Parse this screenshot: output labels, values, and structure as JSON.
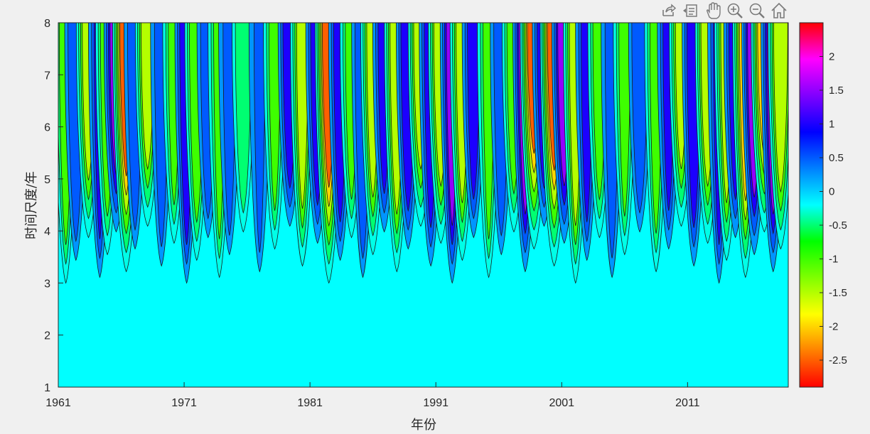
{
  "toolbar": {
    "icons": [
      "export-icon",
      "data-cursor-icon",
      "pan-icon",
      "zoom-in-icon",
      "zoom-out-icon",
      "home-icon"
    ]
  },
  "chart_data": {
    "type": "heatmap",
    "title": "",
    "xlabel": "年份",
    "ylabel": "时间尺度/年",
    "xlim": [
      1961,
      2019
    ],
    "ylim": [
      1,
      8
    ],
    "x_ticks": [
      "1961",
      "1971",
      "1981",
      "1991",
      "2001",
      "2011"
    ],
    "y_ticks": [
      "1",
      "2",
      "3",
      "4",
      "5",
      "6",
      "7",
      "8"
    ],
    "colorbar": {
      "range": [
        -2.9,
        2.5
      ],
      "ticks": [
        "2",
        "1.5",
        "1",
        "0.5",
        "0",
        "-0.5",
        "-1",
        "-1.5",
        "-2",
        "-2.5"
      ],
      "colormap": [
        "#ff0000",
        "#ff00ff",
        "#8000ff",
        "#0000ff",
        "#0080ff",
        "#00ffff",
        "#00ff00",
        "#80ff00",
        "#ffff00",
        "#ff8000",
        "#ff0000"
      ]
    },
    "background_value": 0,
    "grid": false,
    "features": [
      {
        "x": 1961.6,
        "value": -1.2
      },
      {
        "x": 1962.4,
        "value": 0.9
      },
      {
        "x": 1963.4,
        "value": -1.6
      },
      {
        "x": 1964.3,
        "value": 1.0
      },
      {
        "x": 1964.9,
        "value": -1.3
      },
      {
        "x": 1965.6,
        "value": 1.6
      },
      {
        "x": 1966.4,
        "value": -2.6
      },
      {
        "x": 1967.1,
        "value": 0.8
      },
      {
        "x": 1968.1,
        "value": -1.7
      },
      {
        "x": 1969.2,
        "value": 0.7
      },
      {
        "x": 1970.2,
        "value": -1.0
      },
      {
        "x": 1971.2,
        "value": 1.3
      },
      {
        "x": 1972.0,
        "value": -1.4
      },
      {
        "x": 1972.9,
        "value": 0.8
      },
      {
        "x": 1973.8,
        "value": -1.0
      },
      {
        "x": 1974.6,
        "value": 0.6
      },
      {
        "x": 1975.7,
        "value": -0.9
      },
      {
        "x": 1977.0,
        "value": 0.5
      },
      {
        "x": 1978.2,
        "value": -1.0
      },
      {
        "x": 1979.4,
        "value": 1.3
      },
      {
        "x": 1980.4,
        "value": -1.5
      },
      {
        "x": 1981.6,
        "value": 1.3
      },
      {
        "x": 1982.5,
        "value": -2.7
      },
      {
        "x": 1983.4,
        "value": 1.2
      },
      {
        "x": 1984.3,
        "value": -1.1
      },
      {
        "x": 1985.2,
        "value": 0.9
      },
      {
        "x": 1986.0,
        "value": -1.6
      },
      {
        "x": 1986.9,
        "value": 1.1
      },
      {
        "x": 1987.9,
        "value": -1.8
      },
      {
        "x": 1988.8,
        "value": 1.4
      },
      {
        "x": 1989.8,
        "value": -1.9
      },
      {
        "x": 1990.6,
        "value": 1.2
      },
      {
        "x": 1991.4,
        "value": -1.9
      },
      {
        "x": 1992.3,
        "value": 1.5
      },
      {
        "x": 1993.1,
        "value": -1.6
      },
      {
        "x": 1994.0,
        "value": 1.1
      },
      {
        "x": 1995.2,
        "value": -1.0
      },
      {
        "x": 1996.2,
        "value": 0.8
      },
      {
        "x": 1997.2,
        "value": -1.3
      },
      {
        "x": 1998.1,
        "value": 1.7
      },
      {
        "x": 1998.8,
        "value": -2.7
      },
      {
        "x": 1999.6,
        "value": 1.3
      },
      {
        "x": 2000.4,
        "value": -2.8
      },
      {
        "x": 2001.2,
        "value": 1.7
      },
      {
        "x": 2002.1,
        "value": -1.6
      },
      {
        "x": 2003.0,
        "value": 1.0
      },
      {
        "x": 2004.0,
        "value": -1.2
      },
      {
        "x": 2005.0,
        "value": 0.7
      },
      {
        "x": 2006.0,
        "value": -1.0
      },
      {
        "x": 2007.2,
        "value": 0.9
      },
      {
        "x": 2008.5,
        "value": -1.1
      },
      {
        "x": 2009.5,
        "value": 1.0
      },
      {
        "x": 2010.5,
        "value": -1.5
      },
      {
        "x": 2011.5,
        "value": 1.3
      },
      {
        "x": 2012.6,
        "value": -1.8
      },
      {
        "x": 2013.5,
        "value": 1.0
      },
      {
        "x": 2014.1,
        "value": -1.5
      },
      {
        "x": 2014.8,
        "value": 1.2
      },
      {
        "x": 2015.6,
        "value": -2.0
      },
      {
        "x": 2016.3,
        "value": 1.8
      },
      {
        "x": 2017.1,
        "value": -2.3
      },
      {
        "x": 2017.8,
        "value": 1.6
      },
      {
        "x": 2018.4,
        "value": -1.9
      }
    ]
  }
}
